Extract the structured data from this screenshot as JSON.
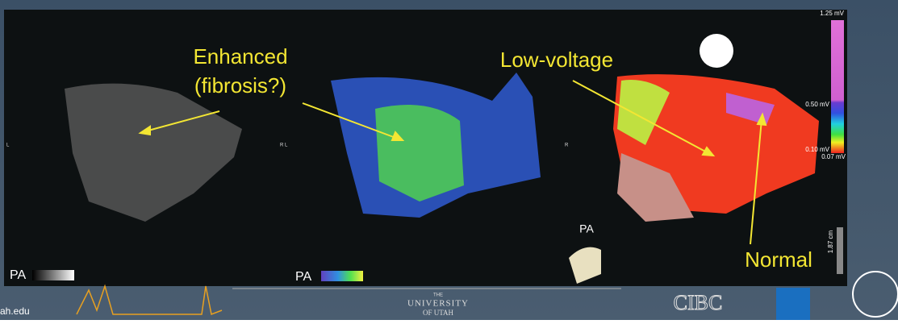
{
  "annotations": {
    "enhanced": [
      "Enhanced",
      "(fibrosis?)"
    ],
    "low_voltage": "Low-voltage",
    "normal": "Normal"
  },
  "panels": [
    {
      "orientation": "L",
      "view": "PA"
    },
    {
      "orientation": "R L",
      "view": "PA"
    },
    {
      "orientation": "R",
      "view": "PA"
    }
  ],
  "colorbar": {
    "max": "1.25 mV",
    "mid": "0.50 mV",
    "low": "0.10 mV",
    "min": "0.07 mV"
  },
  "scale": "1.87 cm",
  "logos": {
    "utah_url": "ah.edu",
    "university": [
      "THE",
      "UNIVERSITY",
      "OF UTAH"
    ],
    "cibc": "CIBC"
  }
}
